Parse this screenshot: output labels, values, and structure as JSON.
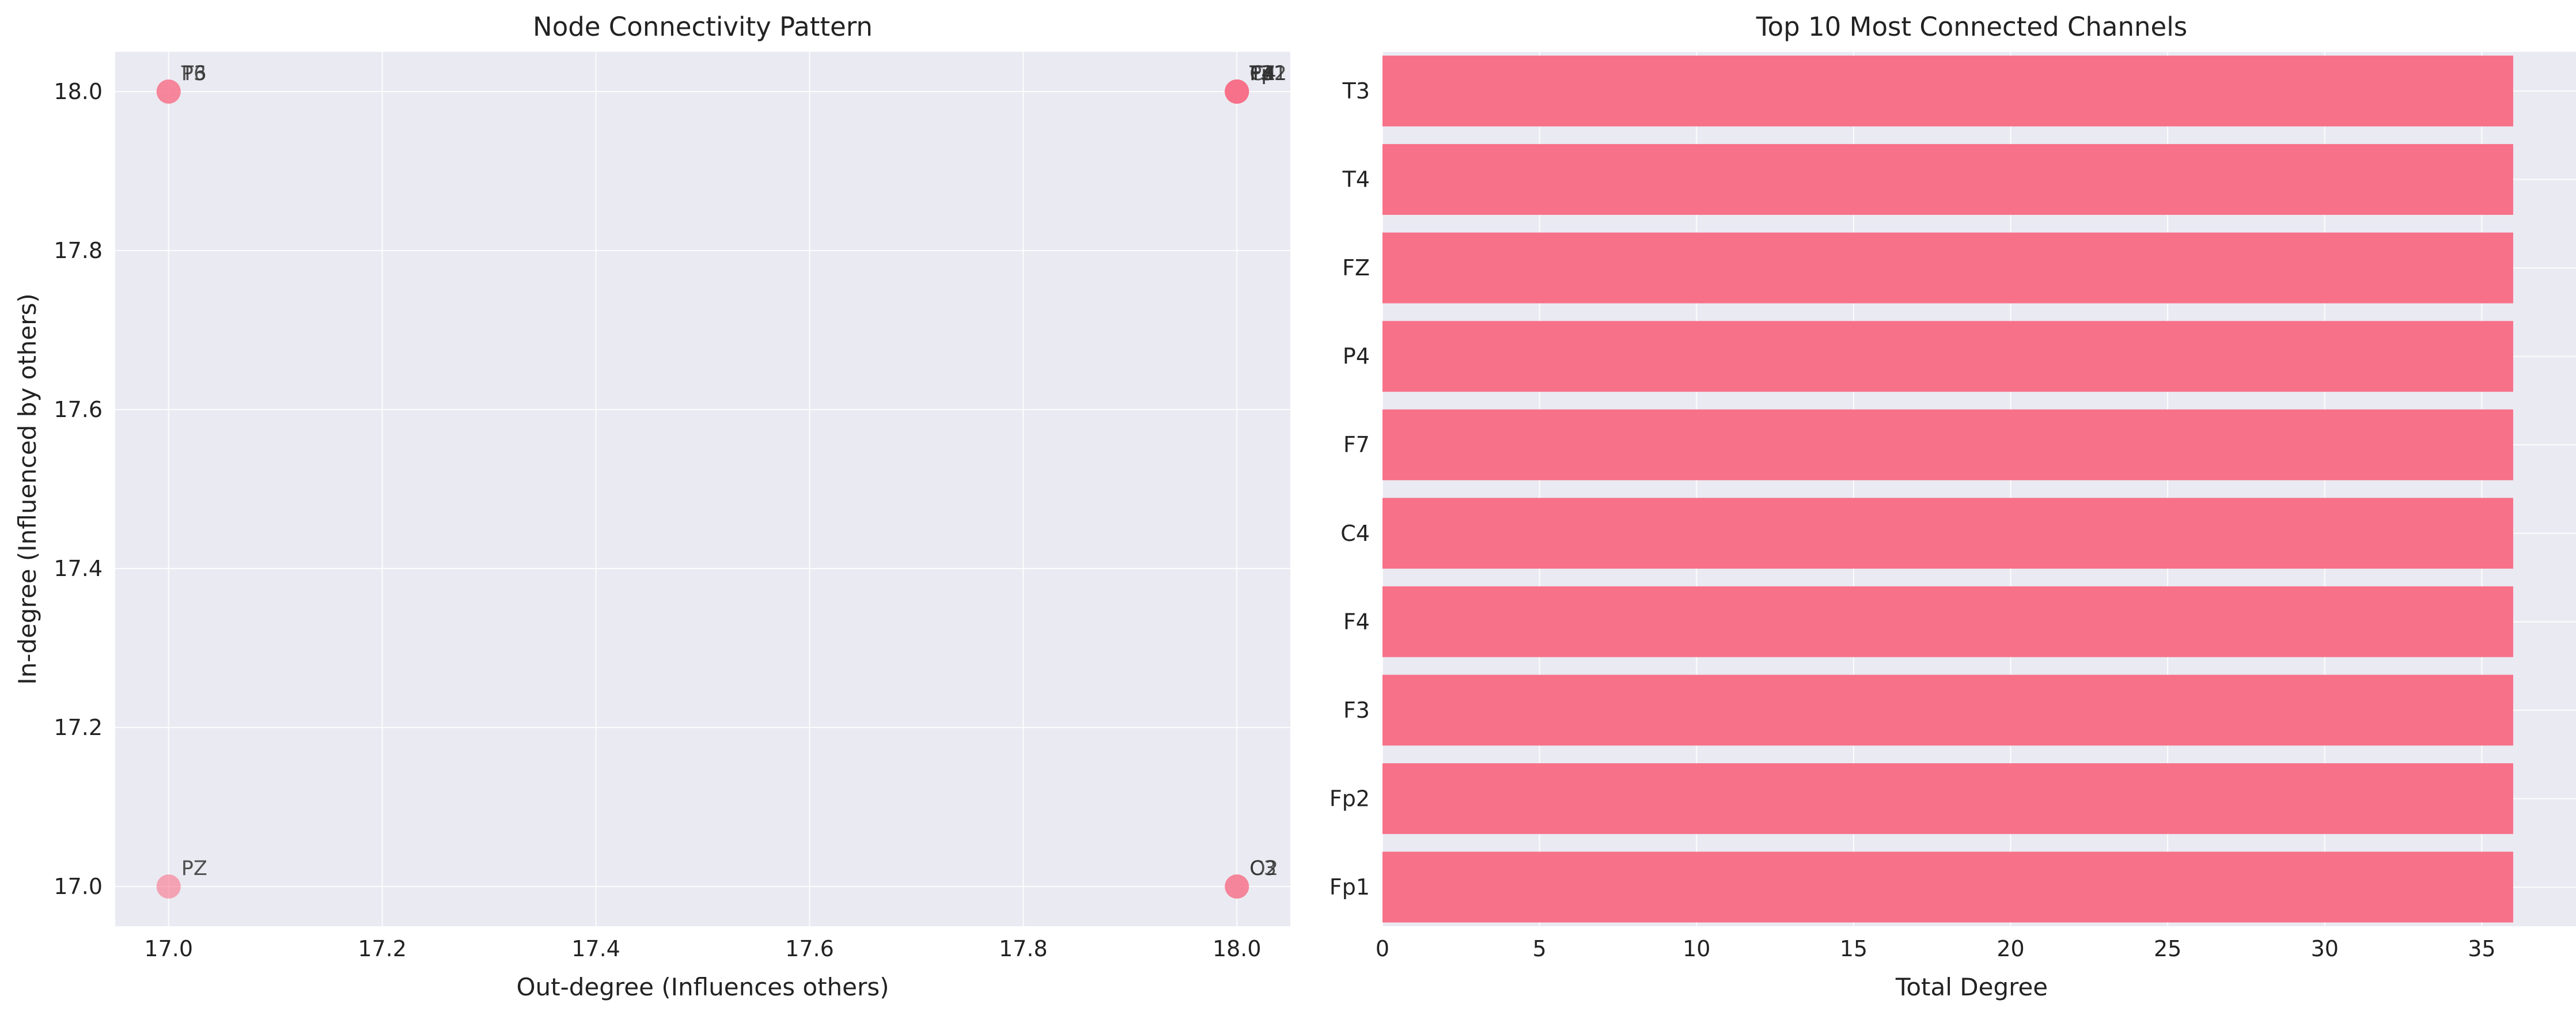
{
  "colors": {
    "axes_bg": "#eaeaf2",
    "accent": "#f77189",
    "grid": "#ffffff",
    "text": "#222222"
  },
  "chart_data": [
    {
      "type": "scatter",
      "title": "Node Connectivity Pattern",
      "xlabel": "Out-degree (Influences others)",
      "ylabel": "In-degree (Influenced by others)",
      "xlim": [
        16.95,
        18.05
      ],
      "ylim": [
        16.95,
        18.05
      ],
      "xticks": [
        "17.0",
        "17.2",
        "17.4",
        "17.6",
        "17.8",
        "18.0"
      ],
      "yticks": [
        "17.0",
        "17.2",
        "17.4",
        "17.6",
        "17.8",
        "18.0"
      ],
      "grid": true,
      "points": [
        {
          "label": "T6",
          "x": 17,
          "y": 18
        },
        {
          "label": "P3",
          "x": 17,
          "y": 18
        },
        {
          "label": "PZ",
          "x": 17,
          "y": 17
        },
        {
          "label": "T3",
          "x": 18,
          "y": 18
        },
        {
          "label": "T4",
          "x": 18,
          "y": 18
        },
        {
          "label": "FZ",
          "x": 18,
          "y": 18
        },
        {
          "label": "P4",
          "x": 18,
          "y": 18
        },
        {
          "label": "F7",
          "x": 18,
          "y": 18
        },
        {
          "label": "C4",
          "x": 18,
          "y": 18
        },
        {
          "label": "F4",
          "x": 18,
          "y": 18
        },
        {
          "label": "F3",
          "x": 18,
          "y": 18
        },
        {
          "label": "Fp2",
          "x": 18,
          "y": 18
        },
        {
          "label": "Fp1",
          "x": 18,
          "y": 18
        },
        {
          "label": "O2",
          "x": 18,
          "y": 17
        },
        {
          "label": "C3",
          "x": 18,
          "y": 17
        }
      ]
    },
    {
      "type": "bar",
      "orientation": "horizontal",
      "title": "Top 10 Most Connected Channels",
      "xlabel": "Total Degree",
      "ylabel": "",
      "categories": [
        "T3",
        "T4",
        "FZ",
        "P4",
        "F7",
        "C4",
        "F4",
        "F3",
        "Fp2",
        "Fp1"
      ],
      "values": [
        36,
        36,
        36,
        36,
        36,
        36,
        36,
        36,
        36,
        36
      ],
      "xlim": [
        0,
        38
      ],
      "xticks": [
        0,
        5,
        10,
        15,
        20,
        25,
        30,
        35
      ],
      "grid": true
    }
  ]
}
